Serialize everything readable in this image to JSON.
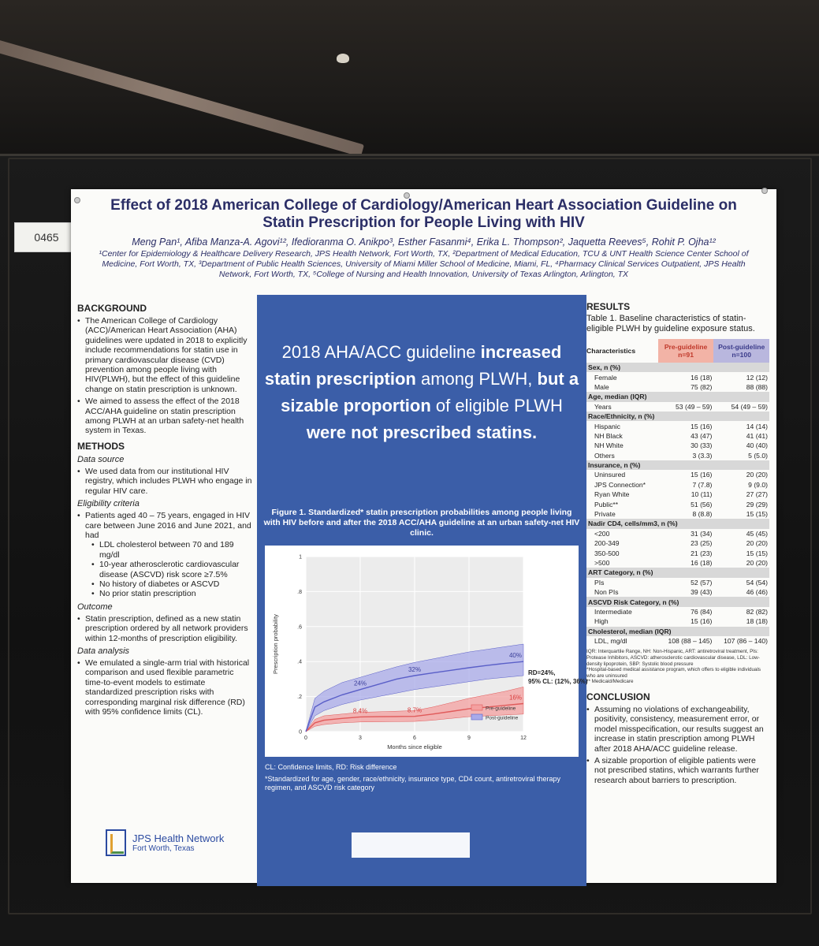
{
  "tag_number": "0465",
  "poster": {
    "title_line1": "Effect of 2018 American College of Cardiology/American Heart Association Guideline on",
    "title_line2": "Statin Prescription for People Living with HIV",
    "authors": "Meng Pan¹, Afiba Manza-A. Agovi¹²,  Ifedioranma O. Anikpo³, Esther Fasanmi⁴, Erika L. Thompson², Jaquetta Reeves⁵, Rohit P. Ojha¹²",
    "affiliations": "¹Center for Epidemiology & Healthcare Delivery Research, JPS Health Network, Fort Worth, TX, ²Department of Medical Education, TCU & UNT Health Science Center School of Medicine, Fort Worth, TX, ³Department of Public Health Sciences, University of Miami Miller School of Medicine, Miami, FL, ⁴Pharmacy Clinical Services Outpatient, JPS Health Network, Fort Worth, TX, ⁵College of Nursing and Health Innovation, University of Texas Arlington, Arlington, TX"
  },
  "left": {
    "background_title": "BACKGROUND",
    "background_bullets": [
      "The American College of Cardiology (ACC)/American Heart Association (AHA) guidelines were updated in 2018 to explicitly include recommendations for statin use in primary cardiovascular disease (CVD) prevention among people living with HIV(PLWH), but the effect of this guideline change on statin prescription is unknown.",
      "We aimed to assess the effect of the 2018 ACC/AHA guideline on statin prescription among PLWH at an urban safety-net health system in Texas."
    ],
    "methods_title": "METHODS",
    "data_source_title": "Data source",
    "data_source_bullet": "We used data from our institutional HIV registry, which includes PLWH who engage in regular HIV care.",
    "eligibility_title": "Eligibility criteria",
    "eligibility_bullet": "Patients aged 40 – 75 years, engaged in HIV care between June 2016 and June 2021, and had",
    "eligibility_sub": [
      "LDL cholesterol between 70 and 189 mg/dl",
      "10-year atherosclerotic cardiovascular disease (ASCVD) risk score ≥7.5%",
      "No history of diabetes or ASCVD",
      "No prior statin prescription"
    ],
    "outcome_title": "Outcome",
    "outcome_bullet": "Statin prescription, defined as a new statin prescription ordered by all network providers within 12-months of prescription eligibility.",
    "analysis_title": "Data analysis",
    "analysis_bullet": "We emulated a single-arm trial with historical comparison and used flexible parametric time-to-event models to estimate standardized prescription risks with corresponding marginal risk difference (RD) with 95% confidence limits (CL).",
    "logo_name": "JPS Health Network",
    "logo_sub": "Fort Worth, Texas"
  },
  "middle": {
    "headline_1": "2018 AHA/ACC guideline ",
    "headline_2": "increased statin prescription",
    "headline_3": " among PLWH, ",
    "headline_4": "but a sizable proportion",
    "headline_5": " of eligible PLWH ",
    "headline_6": "were not prescribed statins.",
    "figure_caption": "Figure 1. Standardized* statin prescription probabilities among people living with HIV before and after the 2018 ACC/AHA guideline at an urban safety-net HIV clinic.",
    "note_1": "CL: Confidence limits, RD: Risk difference",
    "note_2": "*Standardized for age, gender, race/ethnicity, insurance type, CD4 count, antiretroviral therapy regimen, and ASCVD risk category"
  },
  "chart_data": {
    "type": "line",
    "xlabel": "Months since eligible",
    "ylabel": "Prescription probability",
    "x_ticks": [
      0,
      3,
      6,
      9,
      12
    ],
    "y_ticks": [
      "0",
      ".2",
      ".4",
      ".6",
      ".8",
      "1"
    ],
    "xlim": [
      0,
      12
    ],
    "ylim": [
      0,
      1
    ],
    "series": [
      {
        "name": "Pre-guideline",
        "color": "#e05a5a",
        "x": [
          0,
          0.5,
          1,
          2,
          3,
          4,
          5,
          6,
          7,
          8,
          9,
          10,
          11,
          12
        ],
        "y": [
          0,
          0.05,
          0.065,
          0.075,
          0.084,
          0.085,
          0.086,
          0.087,
          0.1,
          0.115,
          0.13,
          0.14,
          0.15,
          0.16
        ],
        "lower": [
          0,
          0.03,
          0.04,
          0.05,
          0.055,
          0.056,
          0.057,
          0.058,
          0.065,
          0.075,
          0.085,
          0.09,
          0.095,
          0.1
        ],
        "upper": [
          0,
          0.07,
          0.09,
          0.1,
          0.11,
          0.113,
          0.116,
          0.12,
          0.14,
          0.165,
          0.19,
          0.21,
          0.23,
          0.255
        ],
        "labels": [
          {
            "x": 3,
            "text": "8.4%"
          },
          {
            "x": 6,
            "text": "8.7%"
          },
          {
            "x": 12,
            "text": "16%"
          }
        ]
      },
      {
        "name": "Post-guideline",
        "color": "#5a5fc8",
        "x": [
          0,
          0.5,
          1,
          2,
          3,
          4,
          5,
          6,
          7,
          8,
          9,
          10,
          11,
          12
        ],
        "y": [
          0,
          0.14,
          0.17,
          0.21,
          0.24,
          0.27,
          0.3,
          0.32,
          0.335,
          0.35,
          0.365,
          0.378,
          0.39,
          0.4
        ],
        "lower": [
          0,
          0.09,
          0.12,
          0.155,
          0.18,
          0.2,
          0.22,
          0.24,
          0.255,
          0.27,
          0.285,
          0.3,
          0.31,
          0.32
        ],
        "upper": [
          0,
          0.19,
          0.23,
          0.28,
          0.31,
          0.34,
          0.37,
          0.395,
          0.415,
          0.435,
          0.455,
          0.47,
          0.485,
          0.5
        ],
        "labels": [
          {
            "x": 3,
            "text": "24%"
          },
          {
            "x": 6,
            "text": "32%"
          },
          {
            "x": 12,
            "text": "40%"
          }
        ]
      }
    ],
    "annotation_line1": "RD=24%,",
    "annotation_line2": "95% CL: (12%, 36%)",
    "legend_placement": "bottom-right"
  },
  "right": {
    "results_title": "RESULTS",
    "table_caption": "Table 1. Baseline characteristics of statin-eligible PLWH by guideline exposure status.",
    "col_characteristics": "Characteristics",
    "col_pre": "Pre-guideline",
    "col_pre_n": "n=91",
    "col_post": "Post-guideline",
    "col_post_n": "n=100",
    "rows": [
      {
        "label": "Sex, n (%)",
        "cat": true
      },
      {
        "label": "Female",
        "pre": "16 (18)",
        "post": "12 (12)"
      },
      {
        "label": "Male",
        "pre": "75 (82)",
        "post": "88 (88)"
      },
      {
        "label": "Age, median (IQR)",
        "cat": true
      },
      {
        "label": "Years",
        "pre": "53 (49 – 59)",
        "post": "54 (49 – 59)"
      },
      {
        "label": "Race/Ethnicity, n (%)",
        "cat": true
      },
      {
        "label": "Hispanic",
        "pre": "15 (16)",
        "post": "14 (14)"
      },
      {
        "label": "NH Black",
        "pre": "43 (47)",
        "post": "41 (41)"
      },
      {
        "label": "NH White",
        "pre": "30 (33)",
        "post": "40 (40)"
      },
      {
        "label": "Others",
        "pre": "3 (3.3)",
        "post": "5 (5.0)"
      },
      {
        "label": "Insurance, n (%)",
        "cat": true
      },
      {
        "label": "Uninsured",
        "pre": "15 (16)",
        "post": "20 (20)"
      },
      {
        "label": "JPS Connection*",
        "pre": "7 (7.8)",
        "post": "9 (9.0)"
      },
      {
        "label": "Ryan White",
        "pre": "10 (11)",
        "post": "27 (27)"
      },
      {
        "label": "Public**",
        "pre": "51 (56)",
        "post": "29 (29)"
      },
      {
        "label": "Private",
        "pre": "8 (8.8)",
        "post": "15 (15)"
      },
      {
        "label": "Nadir CD4, cells/mm3, n (%)",
        "cat": true
      },
      {
        "label": "<200",
        "pre": "31 (34)",
        "post": "45 (45)"
      },
      {
        "label": "200-349",
        "pre": "23 (25)",
        "post": "20 (20)"
      },
      {
        "label": "350-500",
        "pre": "21 (23)",
        "post": "15 (15)"
      },
      {
        "label": ">500",
        "pre": "16 (18)",
        "post": "20 (20)"
      },
      {
        "label": "ART Category, n (%)",
        "cat": true
      },
      {
        "label": "PIs",
        "pre": "52 (57)",
        "post": "54 (54)"
      },
      {
        "label": "Non PIs",
        "pre": "39 (43)",
        "post": "46 (46)"
      },
      {
        "label": "ASCVD Risk Category, n (%)",
        "cat": true
      },
      {
        "label": "Intermediate",
        "pre": "76 (84)",
        "post": "82 (82)"
      },
      {
        "label": "High",
        "pre": "15 (16)",
        "post": "18 (18)"
      },
      {
        "label": "Cholesterol, median (IQR)",
        "cat": true
      },
      {
        "label": "LDL, mg/dl",
        "pre": "108 (88 – 145)",
        "post": "107 (86 – 140)"
      }
    ],
    "table_note_1": "IQR: Interquartile Range, NH: Non-Hispanic, ART: antiretroviral treatment, PIs: Protease Inhibitors, ASCVD: atherosclerotic cardiovascular disease, LDL: Low-density lipoprotein, SBP: Systolic blood pressure",
    "table_note_2": "*Hospital-based medical assistance program, which offers to eligible individuals who are uninsured",
    "table_note_3": "** Medicaid/Medicare",
    "conclusion_title": "CONCLUSION",
    "conclusion_bullets": [
      "Assuming no violations of exchangeability, positivity, consistency, measurement error, or model misspecification, our results suggest an increase in statin prescription among PLWH after 2018 AHA/ACC guideline release.",
      "A sizable proportion of eligible patients were not prescribed statins, which warrants further research about barriers to prescription."
    ]
  }
}
